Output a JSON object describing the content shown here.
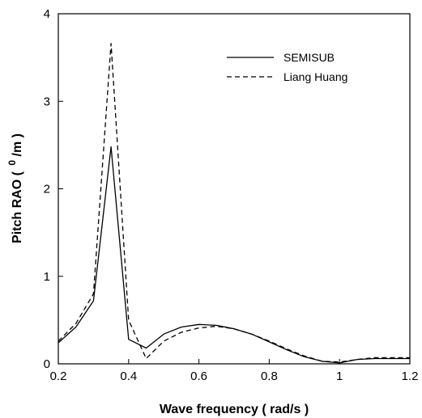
{
  "chart_data": {
    "type": "line",
    "xlabel": "Wave frequency ( rad/s )",
    "ylabel_main": "Pitch RAO (",
    "ylabel_sup": "0",
    "ylabel_end": "/m )",
    "xlim": [
      0.2,
      1.2
    ],
    "ylim": [
      0,
      4
    ],
    "x_ticks": [
      "0.2",
      "0.4",
      "0.6",
      "0.8",
      "1",
      "1.2"
    ],
    "y_ticks": [
      "0",
      "1",
      "2",
      "3",
      "4"
    ],
    "grid": false,
    "legend_position": "top-right",
    "series": [
      {
        "name": "SEMISUB",
        "style": "solid",
        "x": [
          0.2,
          0.25,
          0.3,
          0.35,
          0.4,
          0.45,
          0.5,
          0.55,
          0.6,
          0.65,
          0.7,
          0.75,
          0.8,
          0.85,
          0.9,
          0.95,
          1.0,
          1.05,
          1.1,
          1.15,
          1.2
        ],
        "values": [
          0.24,
          0.42,
          0.72,
          2.48,
          0.28,
          0.18,
          0.34,
          0.42,
          0.45,
          0.44,
          0.4,
          0.34,
          0.25,
          0.16,
          0.08,
          0.03,
          0.01,
          0.05,
          0.06,
          0.06,
          0.06
        ]
      },
      {
        "name": "Liang Huang",
        "style": "dashed",
        "x": [
          0.2,
          0.25,
          0.3,
          0.35,
          0.4,
          0.45,
          0.5,
          0.55,
          0.6,
          0.65,
          0.7,
          0.75,
          0.8,
          0.85,
          0.9,
          0.95,
          1.0,
          1.05,
          1.1,
          1.15,
          1.2
        ],
        "values": [
          0.26,
          0.46,
          0.8,
          3.66,
          0.5,
          0.06,
          0.26,
          0.36,
          0.41,
          0.43,
          0.4,
          0.34,
          0.26,
          0.17,
          0.09,
          0.03,
          0.02,
          0.05,
          0.07,
          0.07,
          0.07
        ]
      }
    ]
  }
}
